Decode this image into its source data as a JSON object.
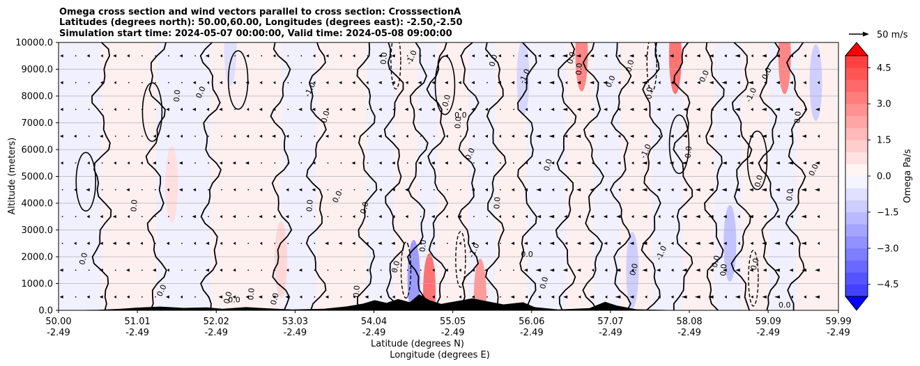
{
  "chart_data": {
    "type": "heatmap",
    "title_lines": [
      "Omega cross section and wind vectors parallel to cross section: CrosssectionA",
      "Latitudes (degrees north): 50.00,60.00, Longitudes (degrees east): -2.50,-2.50",
      "Simulation start time: 2024-05-07 00:00:00, Valid time: 2024-05-08 09:00:00"
    ],
    "ylabel": "Altitude (meters)",
    "xlabel_line1": "Latitude (degrees N)",
    "xlabel_line2": "Longitude (degrees E)",
    "ylim": [
      0,
      10000
    ],
    "yticks": [
      "0.0",
      "1000.0",
      "2000.0",
      "3000.0",
      "4000.0",
      "5000.0",
      "6000.0",
      "7000.0",
      "8000.0",
      "9000.0",
      "10000.0"
    ],
    "xlim": [
      50.0,
      59.99
    ],
    "xticks": [
      {
        "lat": "50.00",
        "lon": "-2.49"
      },
      {
        "lat": "51.01",
        "lon": "-2.49"
      },
      {
        "lat": "52.02",
        "lon": "-2.49"
      },
      {
        "lat": "53.03",
        "lon": "-2.49"
      },
      {
        "lat": "54.04",
        "lon": "-2.49"
      },
      {
        "lat": "55.05",
        "lon": "-2.49"
      },
      {
        "lat": "56.06",
        "lon": "-2.49"
      },
      {
        "lat": "57.07",
        "lon": "-2.49"
      },
      {
        "lat": "58.08",
        "lon": "-2.49"
      },
      {
        "lat": "59.09",
        "lon": "-2.49"
      },
      {
        "lat": "59.99",
        "lon": "-2.49"
      }
    ],
    "grid": "horizontal",
    "colorbar": {
      "label": "Omega Pa/s",
      "range": [
        -5.0,
        5.0
      ],
      "ticks": [
        "4.5",
        "3.0",
        "1.5",
        "0.0",
        "−1.5",
        "−3.0",
        "−4.5"
      ],
      "extend": "both",
      "colors": [
        "#0000ff",
        "#ff0000"
      ]
    },
    "quiver_key": {
      "label": "50 m/s",
      "value": 50
    },
    "contour_label": "0.0",
    "contour_label_neg": "-1.0",
    "bands": [
      {
        "from": 50.0,
        "to": 50.55,
        "sign": "neg"
      },
      {
        "from": 50.55,
        "to": 51.25,
        "sign": "pos"
      },
      {
        "from": 51.25,
        "to": 51.95,
        "sign": "neg"
      },
      {
        "from": 51.95,
        "to": 52.85,
        "sign": "pos"
      },
      {
        "from": 52.85,
        "to": 53.3,
        "sign": "neg"
      },
      {
        "from": 53.3,
        "to": 53.95,
        "sign": "pos"
      },
      {
        "from": 53.95,
        "to": 54.3,
        "sign": "neg"
      },
      {
        "from": 54.3,
        "to": 54.6,
        "sign": "pos"
      },
      {
        "from": 54.6,
        "to": 54.85,
        "sign": "neg"
      },
      {
        "from": 54.85,
        "to": 55.25,
        "sign": "pos"
      },
      {
        "from": 55.25,
        "to": 55.6,
        "sign": "neg"
      },
      {
        "from": 55.6,
        "to": 56.0,
        "sign": "pos"
      },
      {
        "from": 56.0,
        "to": 56.5,
        "sign": "neg"
      },
      {
        "from": 56.5,
        "to": 56.85,
        "sign": "pos"
      },
      {
        "from": 56.85,
        "to": 57.2,
        "sign": "neg"
      },
      {
        "from": 57.2,
        "to": 57.6,
        "sign": "pos"
      },
      {
        "from": 57.6,
        "to": 58.0,
        "sign": "neg"
      },
      {
        "from": 58.0,
        "to": 58.4,
        "sign": "pos"
      },
      {
        "from": 58.4,
        "to": 58.75,
        "sign": "neg"
      },
      {
        "from": 58.75,
        "to": 59.1,
        "sign": "pos"
      },
      {
        "from": 59.1,
        "to": 59.45,
        "sign": "neg"
      },
      {
        "from": 59.45,
        "to": 59.99,
        "sign": "pos"
      }
    ],
    "strong_cells": [
      {
        "lat": 54.75,
        "alt": 700,
        "value": 3.5
      },
      {
        "lat": 54.55,
        "alt": 1200,
        "value": -2.5
      },
      {
        "lat": 55.4,
        "alt": 500,
        "value": 2.5
      },
      {
        "lat": 52.85,
        "alt": 1900,
        "value": 1.0
      },
      {
        "lat": 51.45,
        "alt": 4700,
        "value": 0.8
      },
      {
        "lat": 56.7,
        "alt": 9600,
        "value": 3.0
      },
      {
        "lat": 57.9,
        "alt": 9500,
        "value": 3.5
      },
      {
        "lat": 59.3,
        "alt": 9500,
        "value": 3.0
      },
      {
        "lat": 58.6,
        "alt": 2500,
        "value": -1.5
      },
      {
        "lat": 57.35,
        "alt": 1500,
        "value": -1.2
      },
      {
        "lat": 52.2,
        "alt": 9800,
        "value": -0.8
      },
      {
        "lat": 55.95,
        "alt": 8700,
        "value": -1.0
      },
      {
        "lat": 59.7,
        "alt": 8500,
        "value": -1.2
      }
    ],
    "terrain": [
      {
        "lat": 50.0,
        "alt": 0
      },
      {
        "lat": 50.5,
        "alt": 20
      },
      {
        "lat": 50.8,
        "alt": 60
      },
      {
        "lat": 51.0,
        "alt": 100
      },
      {
        "lat": 51.3,
        "alt": 140
      },
      {
        "lat": 51.6,
        "alt": 90
      },
      {
        "lat": 51.9,
        "alt": 110
      },
      {
        "lat": 52.1,
        "alt": 60
      },
      {
        "lat": 52.4,
        "alt": 120
      },
      {
        "lat": 52.7,
        "alt": 70
      },
      {
        "lat": 53.0,
        "alt": 30
      },
      {
        "lat": 53.4,
        "alt": 60
      },
      {
        "lat": 53.7,
        "alt": 150
      },
      {
        "lat": 53.9,
        "alt": 250
      },
      {
        "lat": 54.05,
        "alt": 380
      },
      {
        "lat": 54.2,
        "alt": 280
      },
      {
        "lat": 54.35,
        "alt": 420
      },
      {
        "lat": 54.5,
        "alt": 300
      },
      {
        "lat": 54.62,
        "alt": 600
      },
      {
        "lat": 54.75,
        "alt": 380
      },
      {
        "lat": 54.9,
        "alt": 240
      },
      {
        "lat": 55.05,
        "alt": 320
      },
      {
        "lat": 55.3,
        "alt": 450
      },
      {
        "lat": 55.5,
        "alt": 330
      },
      {
        "lat": 55.7,
        "alt": 220
      },
      {
        "lat": 55.95,
        "alt": 300
      },
      {
        "lat": 56.1,
        "alt": 120
      },
      {
        "lat": 56.4,
        "alt": 30
      },
      {
        "lat": 56.8,
        "alt": 80
      },
      {
        "lat": 57.0,
        "alt": 320
      },
      {
        "lat": 57.15,
        "alt": 180
      },
      {
        "lat": 57.4,
        "alt": 40
      },
      {
        "lat": 58.0,
        "alt": 0
      },
      {
        "lat": 59.99,
        "alt": 0
      }
    ]
  }
}
